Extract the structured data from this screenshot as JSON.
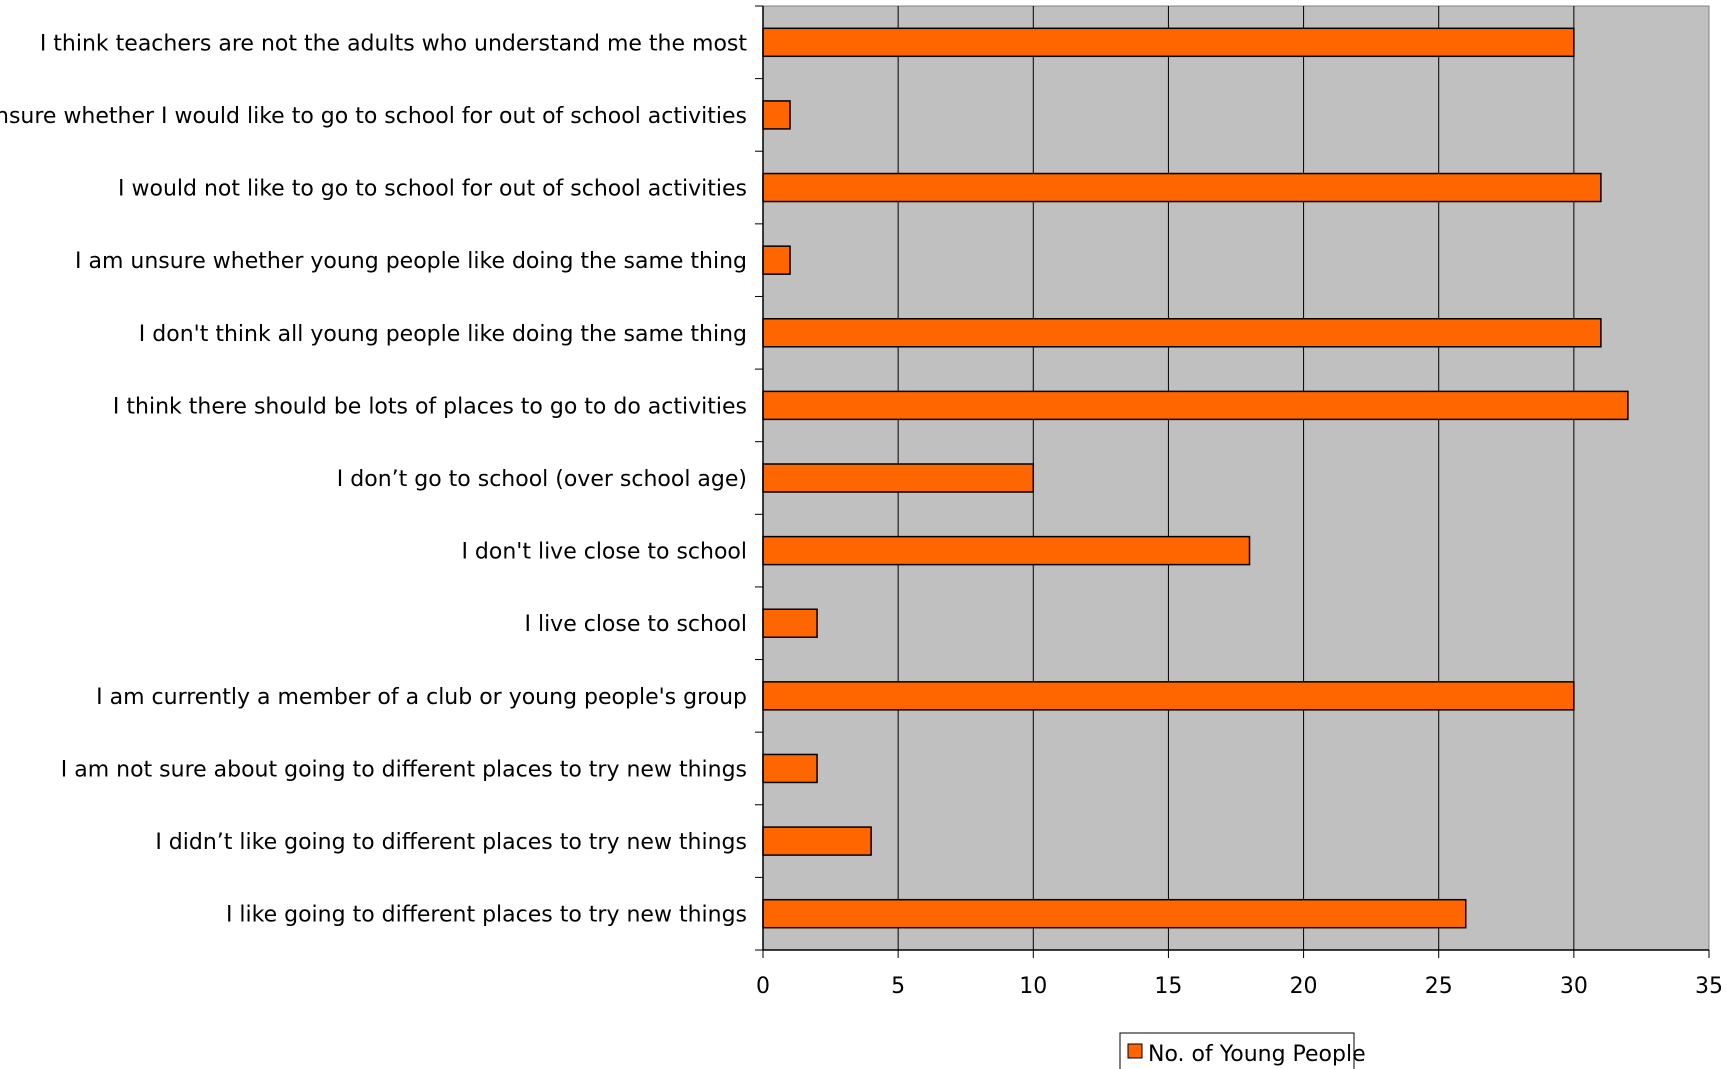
{
  "chart_data": {
    "type": "bar",
    "orientation": "horizontal",
    "title": "",
    "xlabel": "",
    "ylabel": "",
    "categories": [
      "I think teachers are not the adults who understand me the most",
      "I am unsure whether I would like to go to school for out of school activities",
      "I would not like to go to school for out of school activities",
      "I am unsure whether young people like doing the same thing",
      "I don't think all young people like doing the same thing",
      "I think there should be lots of places to go to do activities",
      "I don’t go to school (over school age)",
      "I don't live close to school",
      "I live close to school",
      "I am currently a member of a club or young people's group",
      "I am not sure about going to different places to try new things",
      "I didn’t like going to different places to try new things",
      "I like going to different places to try new things"
    ],
    "series": [
      {
        "name": "No. of Young People",
        "color": "#FF6600",
        "values": [
          30,
          1,
          31,
          1,
          31,
          32,
          10,
          18,
          2,
          30,
          2,
          4,
          26
        ]
      }
    ],
    "xlim": [
      0,
      35
    ],
    "xticks": [
      "0",
      "5",
      "10",
      "15",
      "20",
      "25",
      "30",
      "35"
    ],
    "grid": true,
    "plot_background": "#C0C0C0",
    "legend_position": "bottom"
  }
}
